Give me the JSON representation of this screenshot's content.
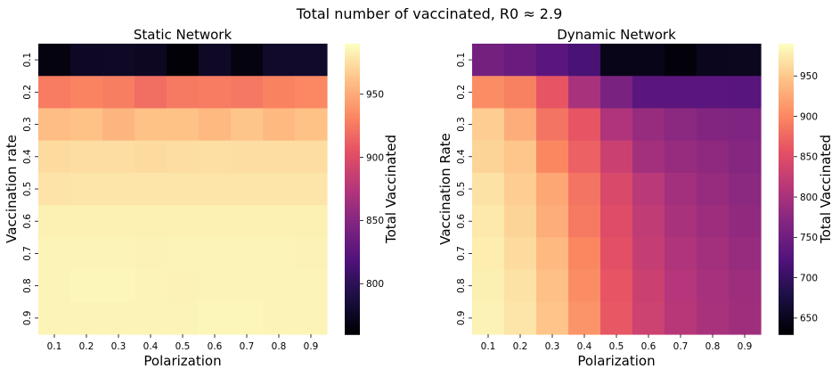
{
  "figure": {
    "suptitle": "Total number of vaccinated, R0 $\\approx$ 2.9",
    "suptitle_display": "Total number of vaccinated, R0  ≈  2.9"
  },
  "colormap": "magma",
  "chart_data": [
    {
      "type": "heatmap",
      "title": "Static Network",
      "xlabel": "Polarization",
      "ylabel": "Vaccination rate",
      "colorbar_label": "Total Vaccinated",
      "x_ticks": [
        "0.1",
        "0.2",
        "0.3",
        "0.4",
        "0.5",
        "0.6",
        "0.7",
        "0.8",
        "0.9"
      ],
      "y_ticks": [
        "0.1",
        "0.2",
        "0.3",
        "0.4",
        "0.5",
        "0.6",
        "0.7",
        "0.8",
        "0.9"
      ],
      "vmin": 760,
      "vmax": 990,
      "colorbar_ticks": [
        800,
        850,
        900,
        950
      ],
      "values": [
        [
          766,
          775,
          776,
          774,
          762,
          776,
          766,
          778,
          778
        ],
        [
          927,
          931,
          928,
          920,
          926,
          927,
          925,
          930,
          933
        ],
        [
          960,
          962,
          956,
          962,
          962,
          958,
          964,
          958,
          962
        ],
        [
          974,
          975,
          975,
          974,
          975,
          976,
          975,
          975,
          975
        ],
        [
          978,
          979,
          979,
          979,
          979,
          979,
          979,
          979,
          979
        ],
        [
          984,
          984,
          984,
          984,
          984,
          984,
          984,
          984,
          984
        ],
        [
          986,
          986,
          986,
          985,
          986,
          986,
          986,
          986,
          985
        ],
        [
          986,
          987,
          987,
          986,
          985,
          986,
          986,
          986,
          986
        ],
        [
          986,
          986,
          986,
          986,
          986,
          987,
          987,
          986,
          986
        ]
      ]
    },
    {
      "type": "heatmap",
      "title": "Dynamic Network",
      "xlabel": "Polarization",
      "ylabel": "Vaccination Rate",
      "colorbar_label": "Total Vaccinated",
      "x_ticks": [
        "0.1",
        "0.2",
        "0.3",
        "0.4",
        "0.5",
        "0.6",
        "0.7",
        "0.8",
        "0.9"
      ],
      "y_ticks": [
        "0.1",
        "0.2",
        "0.3",
        "0.4",
        "0.5",
        "0.6",
        "0.7",
        "0.8",
        "0.9"
      ],
      "vmin": 630,
      "vmax": 990,
      "colorbar_ticks": [
        650,
        700,
        750,
        800,
        850,
        900,
        950
      ],
      "values": [
        [
          755,
          745,
          730,
          715,
          645,
          645,
          635,
          648,
          650
        ],
        [
          905,
          895,
          860,
          800,
          760,
          730,
          730,
          730,
          728
        ],
        [
          955,
          930,
          885,
          860,
          805,
          785,
          775,
          768,
          765
        ],
        [
          960,
          950,
          900,
          870,
          830,
          795,
          785,
          778,
          770
        ],
        [
          970,
          955,
          925,
          885,
          845,
          815,
          795,
          785,
          775
        ],
        [
          975,
          960,
          930,
          890,
          850,
          820,
          800,
          790,
          780
        ],
        [
          978,
          965,
          940,
          900,
          855,
          825,
          805,
          795,
          785
        ],
        [
          980,
          970,
          945,
          905,
          860,
          830,
          810,
          798,
          790
        ],
        [
          982,
          972,
          948,
          910,
          862,
          832,
          812,
          800,
          792
        ]
      ]
    }
  ]
}
